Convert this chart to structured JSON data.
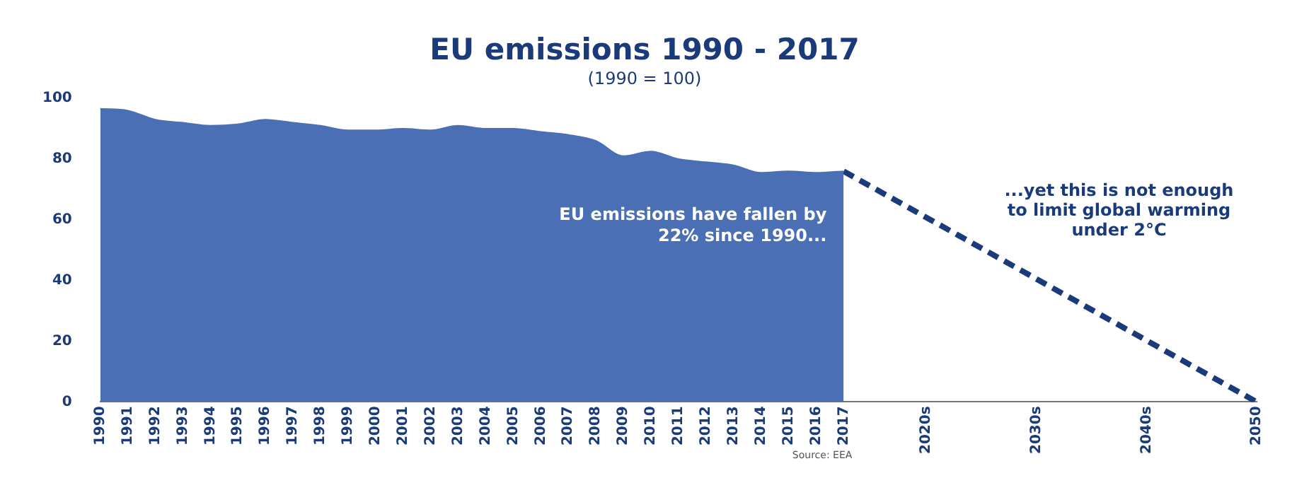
{
  "chart_data": {
    "type": "area",
    "title": "EU emissions 1990 - 2017",
    "subtitle": "(1990 = 100)",
    "categories": [
      "1990",
      "1991",
      "1992",
      "1993",
      "1994",
      "1995",
      "1996",
      "1997",
      "1998",
      "1999",
      "2000",
      "2001",
      "2002",
      "2003",
      "2004",
      "2005",
      "2006",
      "2007",
      "2008",
      "2009",
      "2010",
      "2011",
      "2012",
      "2013",
      "2014",
      "2015",
      "2016",
      "2017",
      null,
      null,
      "2020s",
      null,
      null,
      null,
      "2030s",
      null,
      null,
      null,
      "2040s",
      null,
      null,
      null,
      "2050"
    ],
    "series": [
      {
        "color": "#4a6fb5",
        "values": [
          96.6,
          96,
          93,
          92,
          91,
          91.5,
          93,
          92,
          91,
          89.5,
          89.5,
          90,
          89.5,
          91,
          90,
          90,
          89,
          88,
          86,
          81,
          82.5,
          80,
          79,
          78,
          75.5,
          76,
          75.5,
          76,
          null,
          null,
          null,
          null,
          null,
          null,
          null,
          null,
          null,
          null,
          null,
          null,
          null,
          null,
          null
        ]
      },
      {
        "type": "line",
        "color": "#1a3a7a",
        "line_style": "dashed",
        "values": [
          null,
          null,
          null,
          null,
          null,
          null,
          null,
          null,
          null,
          null,
          null,
          null,
          null,
          null,
          null,
          null,
          null,
          null,
          null,
          null,
          null,
          null,
          null,
          null,
          null,
          null,
          null,
          76,
          null,
          null,
          null,
          null,
          null,
          null,
          null,
          null,
          null,
          null,
          null,
          null,
          null,
          null,
          0
        ]
      }
    ],
    "ylim": [
      0,
      100
    ],
    "yticks": [
      0,
      20,
      40,
      60,
      80,
      100
    ],
    "grid": false,
    "legend": false,
    "annotations": [
      "EU emissions have fallen by 22% since 1990...",
      "...yet this is not enough to limit global warming under 2°C",
      "Source: EEA"
    ]
  }
}
